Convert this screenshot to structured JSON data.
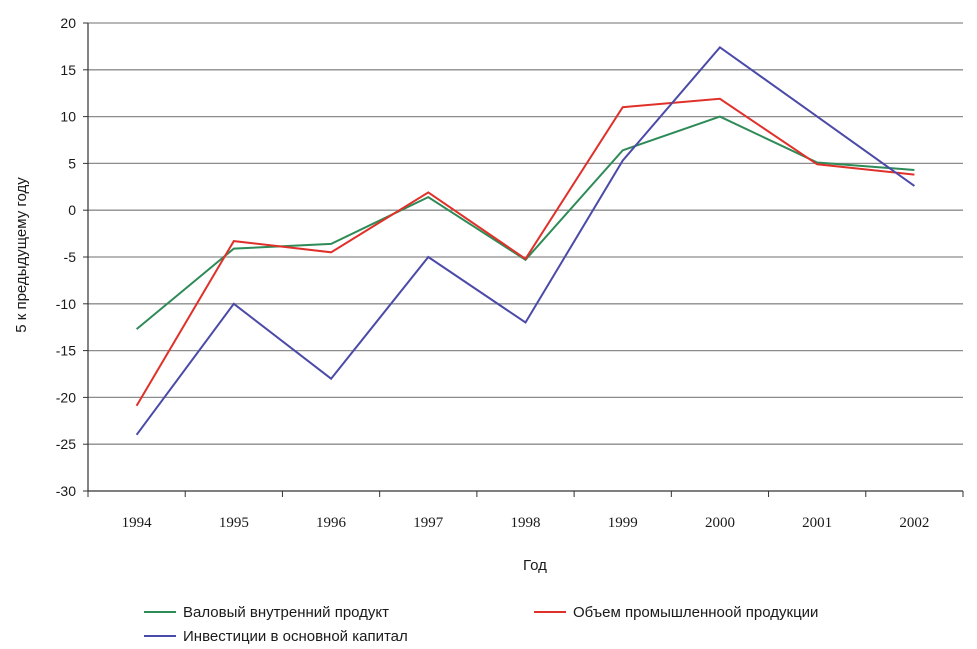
{
  "chart_data": {
    "type": "line",
    "title": "",
    "xlabel": "Год",
    "ylabel": "5 к предыдущему году",
    "categories": [
      "1994",
      "1995",
      "1996",
      "1997",
      "1998",
      "1999",
      "2000",
      "2001",
      "2002"
    ],
    "ylim": [
      -30,
      20
    ],
    "yticks": [
      20,
      15,
      10,
      5,
      0,
      -5,
      -10,
      -15,
      -20,
      -25,
      -30
    ],
    "grid": true,
    "legend_position": "bottom",
    "series": [
      {
        "name": "Валовый внутренний продукт",
        "color": "#2e8b57",
        "values": [
          -12.7,
          -4.1,
          -3.6,
          1.4,
          -5.3,
          6.4,
          10.0,
          5.1,
          4.3
        ]
      },
      {
        "name": "Объем промышленноой продукции",
        "color": "#e0302a",
        "values": [
          -20.9,
          -3.3,
          -4.5,
          1.9,
          -5.2,
          11.0,
          11.9,
          4.9,
          3.8
        ]
      },
      {
        "name": "Инвестиции в основной капитал",
        "color": "#4b4aa8",
        "values": [
          -24.0,
          -10.0,
          -18.0,
          -5.0,
          -12.0,
          5.3,
          17.4,
          10.0,
          2.6
        ]
      }
    ]
  }
}
